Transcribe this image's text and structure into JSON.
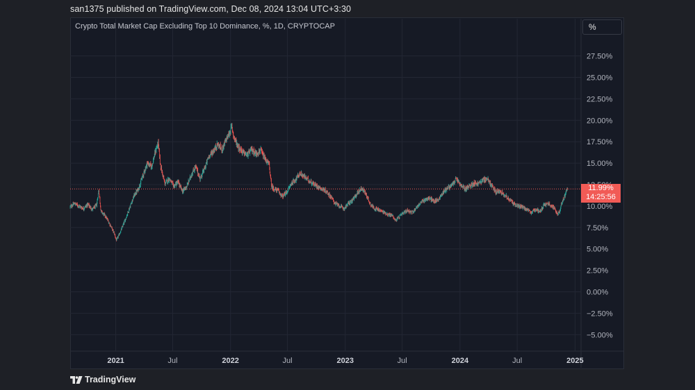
{
  "header": {
    "published_line": "san1375 published on TradingView.com, Dec 08, 2024 13:04 UTC+3:30"
  },
  "toolbar": {
    "percent_button": "%"
  },
  "price_marker": {
    "value_label": "11.99%",
    "countdown": "14:25:56"
  },
  "footer": {
    "logo_text": "TradingView"
  },
  "colors": {
    "up": "#26a69a",
    "down": "#ef5350",
    "background": "#161a25",
    "grid": "#232734",
    "axis_text": "#b2b5be",
    "price_line": "#f15b56"
  },
  "chart_data": {
    "type": "candlestick",
    "title": "Crypto Total Market Cap Excluding Top 10 Dominance, %, 1D, CRYPTOCAP",
    "ylim": [
      -7.5,
      30.0
    ],
    "xlim": [
      "2020-08-09",
      "2025-01-20"
    ],
    "y_ticks": [
      "27.50%",
      "25.00%",
      "22.50%",
      "20.00%",
      "17.50%",
      "15.00%",
      "12.50%",
      "10.00%",
      "7.50%",
      "5.00%",
      "2.50%",
      "0.00%",
      "−2.50%",
      "−5.00%"
    ],
    "y_tick_values": [
      27.5,
      25.0,
      22.5,
      20.0,
      17.5,
      15.0,
      12.5,
      10.0,
      7.5,
      5.0,
      2.5,
      0.0,
      -2.5,
      -5.0
    ],
    "x_ticks": [
      {
        "date": "2021-01-01",
        "label": "2021",
        "bold": true
      },
      {
        "date": "2021-07-01",
        "label": "Jul",
        "bold": false
      },
      {
        "date": "2022-01-01",
        "label": "2022",
        "bold": true
      },
      {
        "date": "2022-07-01",
        "label": "Jul",
        "bold": false
      },
      {
        "date": "2023-01-01",
        "label": "2023",
        "bold": true
      },
      {
        "date": "2023-07-01",
        "label": "Jul",
        "bold": false
      },
      {
        "date": "2024-01-01",
        "label": "2024",
        "bold": true
      },
      {
        "date": "2024-07-01",
        "label": "Jul",
        "bold": false
      },
      {
        "date": "2025-01-01",
        "label": "2025",
        "bold": true
      }
    ],
    "last_value": 11.99,
    "grid": true,
    "series": [
      {
        "values": [
          [
            "2020-08-09",
            9.9
          ],
          [
            "2020-08-23",
            10.3
          ],
          [
            "2020-09-06",
            10.0
          ],
          [
            "2020-09-20",
            9.7
          ],
          [
            "2020-10-04",
            10.2
          ],
          [
            "2020-10-18",
            9.6
          ],
          [
            "2020-11-01",
            10.1
          ],
          [
            "2020-11-08",
            11.9
          ],
          [
            "2020-11-15",
            9.4
          ],
          [
            "2020-11-29",
            8.8
          ],
          [
            "2020-12-13",
            7.9
          ],
          [
            "2020-12-27",
            6.8
          ],
          [
            "2021-01-03",
            6.0
          ],
          [
            "2021-01-17",
            7.1
          ],
          [
            "2021-01-31",
            8.4
          ],
          [
            "2021-02-14",
            9.8
          ],
          [
            "2021-02-28",
            11.2
          ],
          [
            "2021-03-14",
            12.0
          ],
          [
            "2021-03-28",
            13.5
          ],
          [
            "2021-04-11",
            15.0
          ],
          [
            "2021-04-25",
            14.6
          ],
          [
            "2021-05-09",
            16.6
          ],
          [
            "2021-05-16",
            17.3
          ],
          [
            "2021-05-23",
            14.8
          ],
          [
            "2021-06-06",
            12.6
          ],
          [
            "2021-06-20",
            13.2
          ],
          [
            "2021-07-04",
            12.3
          ],
          [
            "2021-07-18",
            12.8
          ],
          [
            "2021-08-01",
            11.7
          ],
          [
            "2021-08-15",
            12.3
          ],
          [
            "2021-08-29",
            13.6
          ],
          [
            "2021-09-12",
            14.6
          ],
          [
            "2021-09-26",
            13.2
          ],
          [
            "2021-10-10",
            14.3
          ],
          [
            "2021-10-24",
            15.8
          ],
          [
            "2021-11-07",
            16.4
          ],
          [
            "2021-11-21",
            17.2
          ],
          [
            "2021-12-05",
            16.6
          ],
          [
            "2021-12-19",
            17.8
          ],
          [
            "2021-12-29",
            18.5
          ],
          [
            "2022-01-05",
            19.3
          ],
          [
            "2022-01-12",
            18.0
          ],
          [
            "2022-01-26",
            16.9
          ],
          [
            "2022-02-09",
            16.3
          ],
          [
            "2022-02-23",
            15.9
          ],
          [
            "2022-03-09",
            16.6
          ],
          [
            "2022-03-23",
            16.1
          ],
          [
            "2022-04-06",
            16.5
          ],
          [
            "2022-04-20",
            15.5
          ],
          [
            "2022-05-04",
            14.8
          ],
          [
            "2022-05-11",
            12.4
          ],
          [
            "2022-05-18",
            12.0
          ],
          [
            "2022-06-01",
            11.8
          ],
          [
            "2022-06-15",
            11.1
          ],
          [
            "2022-06-29",
            11.6
          ],
          [
            "2022-07-13",
            12.6
          ],
          [
            "2022-07-27",
            13.1
          ],
          [
            "2022-08-10",
            13.8
          ],
          [
            "2022-08-24",
            13.4
          ],
          [
            "2022-09-07",
            13.0
          ],
          [
            "2022-09-21",
            12.6
          ],
          [
            "2022-10-05",
            12.3
          ],
          [
            "2022-10-19",
            12.0
          ],
          [
            "2022-11-02",
            11.7
          ],
          [
            "2022-11-16",
            11.1
          ],
          [
            "2022-11-30",
            10.3
          ],
          [
            "2022-12-14",
            10.0
          ],
          [
            "2022-12-28",
            9.7
          ],
          [
            "2023-01-11",
            10.3
          ],
          [
            "2023-01-25",
            10.7
          ],
          [
            "2023-02-08",
            11.5
          ],
          [
            "2023-02-22",
            12.1
          ],
          [
            "2023-03-08",
            11.4
          ],
          [
            "2023-03-22",
            10.2
          ],
          [
            "2023-04-05",
            9.7
          ],
          [
            "2023-04-19",
            9.5
          ],
          [
            "2023-05-03",
            9.3
          ],
          [
            "2023-05-17",
            9.0
          ],
          [
            "2023-05-31",
            8.9
          ],
          [
            "2023-06-10",
            8.3
          ],
          [
            "2023-06-21",
            8.7
          ],
          [
            "2023-07-05",
            9.2
          ],
          [
            "2023-07-19",
            9.5
          ],
          [
            "2023-08-02",
            9.2
          ],
          [
            "2023-08-16",
            9.9
          ],
          [
            "2023-08-30",
            10.4
          ],
          [
            "2023-09-13",
            10.8
          ],
          [
            "2023-09-27",
            10.9
          ],
          [
            "2023-10-11",
            10.5
          ],
          [
            "2023-10-25",
            10.8
          ],
          [
            "2023-11-08",
            11.6
          ],
          [
            "2023-11-22",
            12.1
          ],
          [
            "2023-12-06",
            12.4
          ],
          [
            "2023-12-20",
            13.2
          ],
          [
            "2024-01-03",
            12.4
          ],
          [
            "2024-01-17",
            12.0
          ],
          [
            "2024-01-31",
            12.3
          ],
          [
            "2024-02-14",
            12.7
          ],
          [
            "2024-02-28",
            12.6
          ],
          [
            "2024-03-13",
            13.0
          ],
          [
            "2024-03-27",
            13.2
          ],
          [
            "2024-04-10",
            12.4
          ],
          [
            "2024-04-24",
            11.6
          ],
          [
            "2024-05-08",
            11.8
          ],
          [
            "2024-05-22",
            11.3
          ],
          [
            "2024-06-05",
            10.8
          ],
          [
            "2024-06-19",
            10.3
          ],
          [
            "2024-07-03",
            10.0
          ],
          [
            "2024-07-17",
            9.9
          ],
          [
            "2024-07-31",
            9.6
          ],
          [
            "2024-08-14",
            9.2
          ],
          [
            "2024-08-28",
            9.6
          ],
          [
            "2024-09-11",
            9.4
          ],
          [
            "2024-09-25",
            10.1
          ],
          [
            "2024-10-09",
            10.3
          ],
          [
            "2024-10-23",
            9.9
          ],
          [
            "2024-11-06",
            9.1
          ],
          [
            "2024-11-13",
            9.4
          ],
          [
            "2024-11-20",
            10.4
          ],
          [
            "2024-11-27",
            10.9
          ],
          [
            "2024-12-03",
            11.7
          ],
          [
            "2024-12-08",
            11.99
          ]
        ]
      }
    ]
  }
}
